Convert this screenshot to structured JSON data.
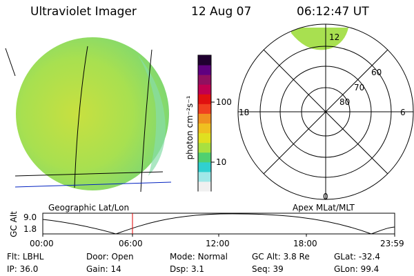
{
  "header": {
    "instrument": "Ultraviolet Imager",
    "date": "12 Aug 07",
    "time": "06:12:47 UT"
  },
  "colorbar": {
    "unit_label": "photon cm⁻²s⁻¹",
    "ticks": [
      {
        "label": "100",
        "value": 100
      },
      {
        "label": "10",
        "value": 10
      }
    ],
    "scale": "log",
    "colors": [
      "#f0f0f0",
      "#a0e8e8",
      "#30d0d0",
      "#50d070",
      "#a8e040",
      "#e0e020",
      "#f0c020",
      "#f09020",
      "#f04020",
      "#e01010",
      "#c00050",
      "#901060",
      "#600080",
      "#200030"
    ]
  },
  "left_panel": {
    "label": "Geographic Lat/Lon",
    "disk_color": "#a8e050"
  },
  "right_panel": {
    "label": "Apex MLat/MLT",
    "mlt_labels": {
      "top": "12",
      "left": "18",
      "right": "6",
      "bottom": "0"
    },
    "mlat_labels": [
      "60",
      "70",
      "80"
    ],
    "oval_color": "#a8e050"
  },
  "timeline": {
    "ylabel": "GC Alt",
    "y_ticks": [
      "9.0",
      "1.8"
    ],
    "x_ticks": [
      "00:00",
      "06:00",
      "12:00",
      "18:00",
      "23:59"
    ],
    "current_time": "06:12",
    "marker_color": "#e00000"
  },
  "status": {
    "row1": [
      {
        "key": "Flt:",
        "value": "LBHL"
      },
      {
        "key": "Door:",
        "value": "Open"
      },
      {
        "key": "Mode:",
        "value": "Normal"
      },
      {
        "key": "GC Alt:",
        "value": "3.8 Re"
      },
      {
        "key": "GLat:",
        "value": "-32.4"
      }
    ],
    "row2": [
      {
        "key": "IP:",
        "value": "36.0"
      },
      {
        "key": "Gain:",
        "value": "14"
      },
      {
        "key": "Dsp:",
        "value": "3.1"
      },
      {
        "key": "Seq:",
        "value": "39"
      },
      {
        "key": "GLon:",
        "value": "99.4"
      }
    ]
  }
}
